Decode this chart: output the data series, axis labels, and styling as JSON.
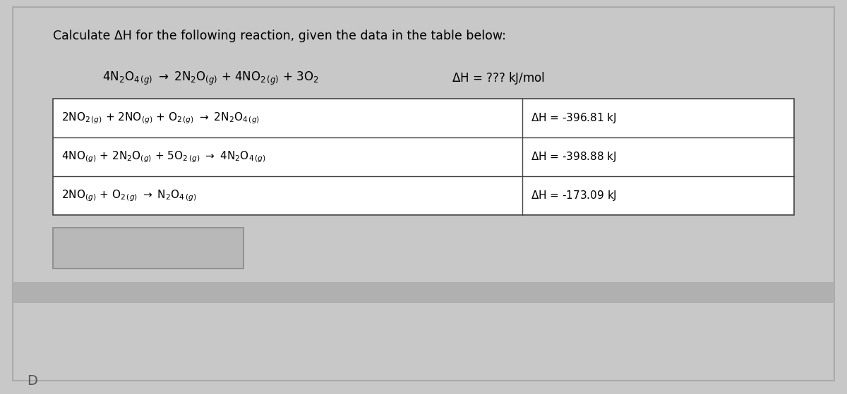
{
  "title": "Calculate ΔH for the following reaction, given the data in the table below:",
  "bg_color": "#c8c8c8",
  "content_bg": "#c8c8c8",
  "table_bg": "#ffffff",
  "table_border": "#444444",
  "answer_box_bg": "#b8b8b8",
  "outer_border": "#888888",
  "title_fontsize": 12.5,
  "reaction_fontsize": 12,
  "table_fontsize": 11,
  "dh_fontsize": 11
}
